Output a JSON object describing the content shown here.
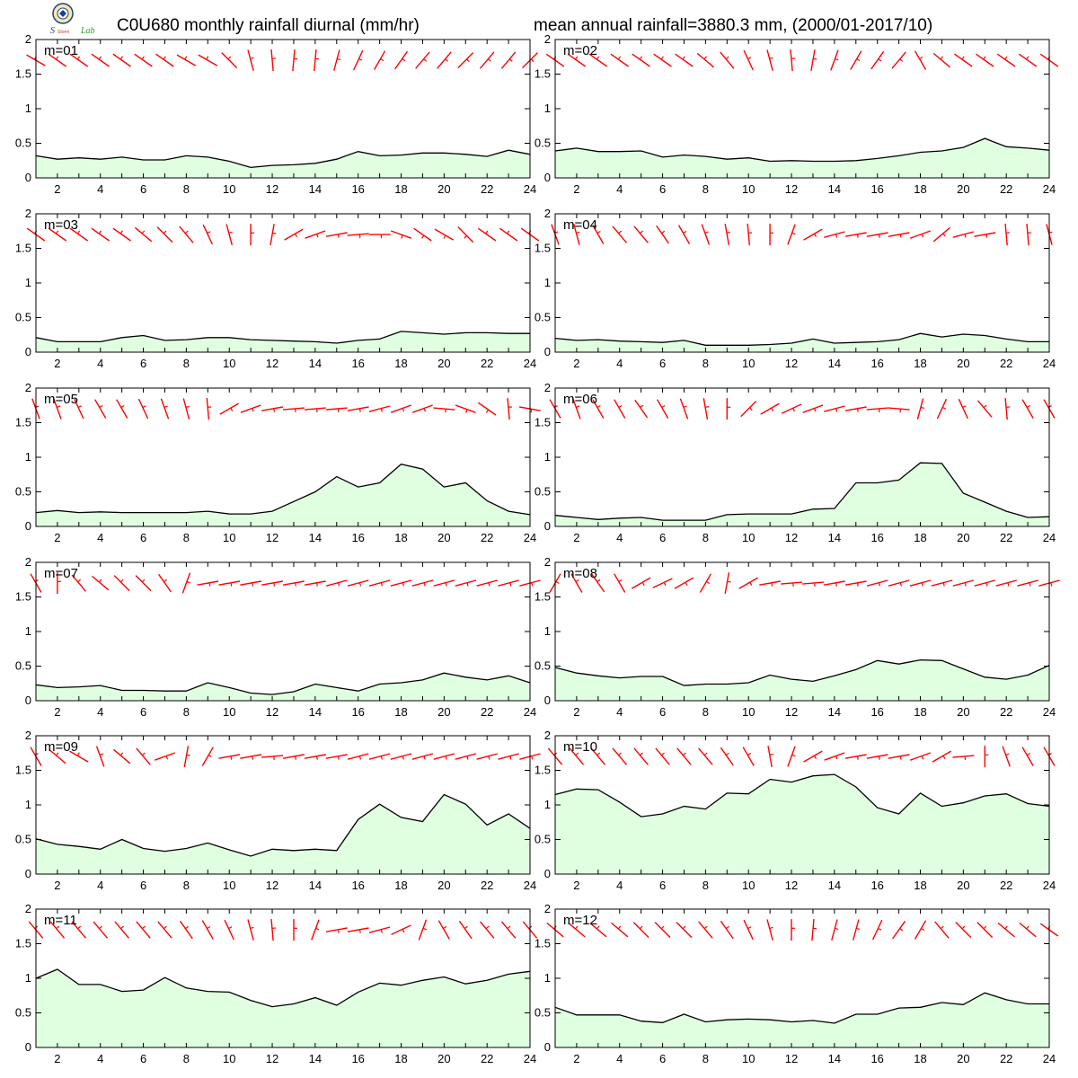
{
  "title_left": "C0U680 monthly rainfall diurnal (mm/hr)",
  "title_right": "mean annual rainfall=3880.3 mm, (2000/01-2017/10)",
  "logo": {
    "icon": "institution-seal-logo",
    "text": "Lab"
  },
  "colors": {
    "fill": "#e0ffe0",
    "line": "#000000",
    "wind": "#ff0000"
  },
  "chart_data": [
    {
      "type": "area",
      "label": "m=01",
      "x": [
        1,
        2,
        3,
        4,
        5,
        6,
        7,
        8,
        9,
        10,
        11,
        12,
        13,
        14,
        15,
        16,
        17,
        18,
        19,
        20,
        21,
        22,
        23,
        24
      ],
      "values": [
        0.32,
        0.27,
        0.29,
        0.27,
        0.3,
        0.26,
        0.26,
        0.32,
        0.3,
        0.24,
        0.15,
        0.18,
        0.19,
        0.21,
        0.27,
        0.38,
        0.32,
        0.33,
        0.36,
        0.36,
        0.34,
        0.31,
        0.4,
        0.34
      ],
      "xlim": [
        1,
        24
      ],
      "ylim": [
        0,
        2
      ],
      "xticks": [
        2,
        4,
        6,
        8,
        10,
        12,
        14,
        16,
        18,
        20,
        22,
        24
      ],
      "yticks": [
        0,
        0.5,
        1,
        1.5,
        2
      ],
      "wind_dir": [
        300,
        305,
        305,
        305,
        305,
        305,
        305,
        300,
        300,
        315,
        345,
        355,
        5,
        5,
        15,
        25,
        30,
        35,
        40,
        40,
        45,
        40,
        40,
        45
      ]
    },
    {
      "type": "area",
      "label": "m=02",
      "x": [
        1,
        2,
        3,
        4,
        5,
        6,
        7,
        8,
        9,
        10,
        11,
        12,
        13,
        14,
        15,
        16,
        17,
        18,
        19,
        20,
        21,
        22,
        23,
        24
      ],
      "values": [
        0.39,
        0.43,
        0.38,
        0.38,
        0.39,
        0.3,
        0.33,
        0.31,
        0.27,
        0.29,
        0.24,
        0.25,
        0.24,
        0.24,
        0.25,
        0.28,
        0.32,
        0.37,
        0.39,
        0.44,
        0.57,
        0.45,
        0.43,
        0.4
      ],
      "xlim": [
        1,
        24
      ],
      "ylim": [
        0,
        2
      ],
      "xticks": [
        2,
        4,
        6,
        8,
        10,
        12,
        14,
        16,
        18,
        20,
        22,
        24
      ],
      "yticks": [
        0,
        0.5,
        1,
        1.5,
        2
      ],
      "wind_dir": [
        305,
        305,
        305,
        305,
        305,
        305,
        305,
        310,
        320,
        335,
        345,
        355,
        10,
        20,
        30,
        35,
        40,
        330,
        310,
        305,
        305,
        305,
        305,
        305
      ]
    },
    {
      "type": "area",
      "label": "m=03",
      "x": [
        1,
        2,
        3,
        4,
        5,
        6,
        7,
        8,
        9,
        10,
        11,
        12,
        13,
        14,
        15,
        16,
        17,
        18,
        19,
        20,
        21,
        22,
        23,
        24
      ],
      "values": [
        0.21,
        0.15,
        0.15,
        0.15,
        0.21,
        0.24,
        0.17,
        0.18,
        0.21,
        0.21,
        0.18,
        0.17,
        0.16,
        0.15,
        0.13,
        0.17,
        0.19,
        0.3,
        0.28,
        0.26,
        0.28,
        0.28,
        0.27,
        0.27
      ],
      "xlim": [
        1,
        24
      ],
      "ylim": [
        0,
        2
      ],
      "xticks": [
        2,
        4,
        6,
        8,
        10,
        12,
        14,
        16,
        18,
        20,
        22,
        24
      ],
      "yticks": [
        0,
        0.5,
        1,
        1.5,
        2
      ],
      "wind_dir": [
        305,
        305,
        305,
        305,
        305,
        310,
        315,
        320,
        335,
        345,
        0,
        10,
        60,
        70,
        80,
        85,
        90,
        110,
        125,
        120,
        135,
        305,
        305,
        305
      ]
    },
    {
      "type": "area",
      "label": "m=04",
      "x": [
        1,
        2,
        3,
        4,
        5,
        6,
        7,
        8,
        9,
        10,
        11,
        12,
        13,
        14,
        15,
        16,
        17,
        18,
        19,
        20,
        21,
        22,
        23,
        24
      ],
      "values": [
        0.2,
        0.17,
        0.18,
        0.16,
        0.15,
        0.14,
        0.17,
        0.1,
        0.1,
        0.1,
        0.11,
        0.13,
        0.19,
        0.13,
        0.14,
        0.15,
        0.18,
        0.27,
        0.22,
        0.26,
        0.24,
        0.19,
        0.15,
        0.15
      ],
      "xlim": [
        1,
        24
      ],
      "ylim": [
        0,
        2
      ],
      "xticks": [
        2,
        4,
        6,
        8,
        10,
        12,
        14,
        16,
        18,
        20,
        22,
        24
      ],
      "yticks": [
        0,
        0.5,
        1,
        1.5,
        2
      ],
      "wind_dir": [
        340,
        345,
        330,
        320,
        320,
        325,
        330,
        340,
        350,
        355,
        0,
        20,
        60,
        75,
        80,
        80,
        80,
        70,
        50,
        75,
        80,
        355,
        355,
        345
      ]
    },
    {
      "type": "area",
      "label": "m=05",
      "x": [
        1,
        2,
        3,
        4,
        5,
        6,
        7,
        8,
        9,
        10,
        11,
        12,
        13,
        14,
        15,
        16,
        17,
        18,
        19,
        20,
        21,
        22,
        23,
        24
      ],
      "values": [
        0.2,
        0.23,
        0.2,
        0.21,
        0.2,
        0.2,
        0.2,
        0.2,
        0.22,
        0.18,
        0.18,
        0.22,
        0.36,
        0.5,
        0.72,
        0.57,
        0.63,
        0.9,
        0.83,
        0.57,
        0.63,
        0.37,
        0.22,
        0.17
      ],
      "xlim": [
        1,
        24
      ],
      "ylim": [
        0,
        2
      ],
      "xticks": [
        2,
        4,
        6,
        8,
        10,
        12,
        14,
        16,
        18,
        20,
        22,
        24
      ],
      "yticks": [
        0,
        0.5,
        1,
        1.5,
        2
      ],
      "wind_dir": [
        340,
        340,
        335,
        330,
        330,
        335,
        340,
        345,
        355,
        60,
        70,
        80,
        85,
        85,
        85,
        80,
        75,
        70,
        70,
        95,
        110,
        125,
        355,
        100
      ]
    },
    {
      "type": "area",
      "label": "m=06",
      "x": [
        1,
        2,
        3,
        4,
        5,
        6,
        7,
        8,
        9,
        10,
        11,
        12,
        13,
        14,
        15,
        16,
        17,
        18,
        19,
        20,
        21,
        22,
        23,
        24
      ],
      "values": [
        0.16,
        0.13,
        0.1,
        0.12,
        0.13,
        0.09,
        0.09,
        0.09,
        0.17,
        0.18,
        0.18,
        0.18,
        0.25,
        0.26,
        0.63,
        0.63,
        0.67,
        0.92,
        0.91,
        0.48,
        0.35,
        0.22,
        0.13,
        0.14
      ],
      "xlim": [
        1,
        24
      ],
      "ylim": [
        0,
        2
      ],
      "xticks": [
        2,
        4,
        6,
        8,
        10,
        12,
        14,
        16,
        18,
        20,
        22,
        24
      ],
      "yticks": [
        0,
        0.5,
        1,
        1.5,
        2
      ],
      "wind_dir": [
        330,
        340,
        330,
        330,
        325,
        330,
        340,
        350,
        0,
        45,
        60,
        65,
        70,
        75,
        80,
        85,
        95,
        15,
        25,
        335,
        320,
        355,
        330,
        330
      ]
    },
    {
      "type": "area",
      "label": "m=07",
      "x": [
        1,
        2,
        3,
        4,
        5,
        6,
        7,
        8,
        9,
        10,
        11,
        12,
        13,
        14,
        15,
        16,
        17,
        18,
        19,
        20,
        21,
        22,
        23,
        24
      ],
      "values": [
        0.23,
        0.19,
        0.2,
        0.22,
        0.15,
        0.15,
        0.14,
        0.14,
        0.26,
        0.19,
        0.11,
        0.09,
        0.13,
        0.24,
        0.19,
        0.14,
        0.24,
        0.26,
        0.3,
        0.4,
        0.34,
        0.3,
        0.36,
        0.26
      ],
      "xlim": [
        1,
        24
      ],
      "ylim": [
        0,
        2
      ],
      "xticks": [
        2,
        4,
        6,
        8,
        10,
        12,
        14,
        16,
        18,
        20,
        22,
        24
      ],
      "yticks": [
        0,
        0.5,
        1,
        1.5,
        2
      ],
      "wind_dir": [
        330,
        0,
        320,
        310,
        315,
        315,
        325,
        20,
        80,
        80,
        80,
        80,
        80,
        80,
        75,
        75,
        75,
        75,
        75,
        75,
        75,
        75,
        75,
        75
      ]
    },
    {
      "type": "area",
      "label": "m=08",
      "x": [
        1,
        2,
        3,
        4,
        5,
        6,
        7,
        8,
        9,
        10,
        11,
        12,
        13,
        14,
        15,
        16,
        17,
        18,
        19,
        20,
        21,
        22,
        23,
        24
      ],
      "values": [
        0.48,
        0.4,
        0.36,
        0.33,
        0.35,
        0.35,
        0.22,
        0.24,
        0.24,
        0.26,
        0.37,
        0.31,
        0.28,
        0.36,
        0.45,
        0.58,
        0.53,
        0.59,
        0.58,
        0.46,
        0.34,
        0.31,
        0.37,
        0.51
      ],
      "xlim": [
        1,
        24
      ],
      "ylim": [
        0,
        2
      ],
      "xticks": [
        2,
        4,
        6,
        8,
        10,
        12,
        14,
        16,
        18,
        20,
        22,
        24
      ],
      "yticks": [
        0,
        0.5,
        1,
        1.5,
        2
      ],
      "wind_dir": [
        30,
        330,
        325,
        330,
        60,
        65,
        60,
        30,
        10,
        60,
        80,
        85,
        85,
        80,
        80,
        75,
        75,
        75,
        75,
        75,
        75,
        75,
        75,
        75
      ]
    },
    {
      "type": "area",
      "label": "m=09",
      "x": [
        1,
        2,
        3,
        4,
        5,
        6,
        7,
        8,
        9,
        10,
        11,
        12,
        13,
        14,
        15,
        16,
        17,
        18,
        19,
        20,
        21,
        22,
        23,
        24
      ],
      "values": [
        0.51,
        0.43,
        0.4,
        0.36,
        0.5,
        0.37,
        0.33,
        0.37,
        0.45,
        0.35,
        0.26,
        0.36,
        0.34,
        0.36,
        0.34,
        0.79,
        1.01,
        0.82,
        0.76,
        1.15,
        1.01,
        0.71,
        0.87,
        0.66
      ],
      "xlim": [
        1,
        24
      ],
      "ylim": [
        0,
        2
      ],
      "xticks": [
        2,
        4,
        6,
        8,
        10,
        12,
        14,
        16,
        18,
        20,
        22,
        24
      ],
      "yticks": [
        0,
        0.5,
        1,
        1.5,
        2
      ],
      "wind_dir": [
        330,
        310,
        300,
        340,
        310,
        320,
        70,
        10,
        30,
        80,
        80,
        85,
        80,
        80,
        80,
        75,
        75,
        75,
        75,
        75,
        75,
        75,
        75,
        75
      ]
    },
    {
      "type": "area",
      "label": "m=10",
      "x": [
        1,
        2,
        3,
        4,
        5,
        6,
        7,
        8,
        9,
        10,
        11,
        12,
        13,
        14,
        15,
        16,
        17,
        18,
        19,
        20,
        21,
        22,
        23,
        24
      ],
      "values": [
        1.15,
        1.23,
        1.22,
        1.04,
        0.83,
        0.87,
        0.98,
        0.94,
        1.17,
        1.16,
        1.37,
        1.33,
        1.42,
        1.44,
        1.26,
        0.96,
        0.87,
        1.17,
        0.98,
        1.03,
        1.13,
        1.16,
        1.02,
        0.98
      ],
      "xlim": [
        1,
        24
      ],
      "ylim": [
        0,
        2
      ],
      "xticks": [
        2,
        4,
        6,
        8,
        10,
        12,
        14,
        16,
        18,
        20,
        22,
        24
      ],
      "yticks": [
        0,
        0.5,
        1,
        1.5,
        2
      ],
      "wind_dir": [
        320,
        320,
        320,
        320,
        320,
        320,
        320,
        320,
        325,
        330,
        350,
        20,
        60,
        70,
        80,
        80,
        80,
        70,
        60,
        85,
        0,
        340,
        330,
        330
      ]
    },
    {
      "type": "area",
      "label": "m=11",
      "x": [
        1,
        2,
        3,
        4,
        5,
        6,
        7,
        8,
        9,
        10,
        11,
        12,
        13,
        14,
        15,
        16,
        17,
        18,
        19,
        20,
        21,
        22,
        23,
        24
      ],
      "values": [
        1.0,
        1.13,
        0.91,
        0.91,
        0.81,
        0.83,
        1.01,
        0.86,
        0.81,
        0.8,
        0.68,
        0.59,
        0.63,
        0.72,
        0.61,
        0.8,
        0.93,
        0.9,
        0.97,
        1.02,
        0.92,
        0.97,
        1.06,
        1.1
      ],
      "xlim": [
        1,
        24
      ],
      "ylim": [
        0,
        2
      ],
      "xticks": [
        2,
        4,
        6,
        8,
        10,
        12,
        14,
        16,
        18,
        20,
        22,
        24
      ],
      "yticks": [
        0,
        0.5,
        1,
        1.5,
        2
      ],
      "wind_dir": [
        320,
        320,
        320,
        320,
        320,
        320,
        320,
        325,
        330,
        335,
        345,
        355,
        0,
        20,
        80,
        80,
        75,
        65,
        20,
        330,
        325,
        320,
        320,
        320
      ]
    },
    {
      "type": "area",
      "label": "m=12",
      "x": [
        1,
        2,
        3,
        4,
        5,
        6,
        7,
        8,
        9,
        10,
        11,
        12,
        13,
        14,
        15,
        16,
        17,
        18,
        19,
        20,
        21,
        22,
        23,
        24
      ],
      "values": [
        0.58,
        0.47,
        0.47,
        0.47,
        0.38,
        0.36,
        0.48,
        0.37,
        0.4,
        0.41,
        0.4,
        0.37,
        0.39,
        0.35,
        0.48,
        0.48,
        0.57,
        0.58,
        0.65,
        0.62,
        0.79,
        0.69,
        0.63,
        0.63
      ],
      "xlim": [
        1,
        24
      ],
      "ylim": [
        0,
        2
      ],
      "xticks": [
        2,
        4,
        6,
        8,
        10,
        12,
        14,
        16,
        18,
        20,
        22,
        24
      ],
      "yticks": [
        0,
        0.5,
        1,
        1.5,
        2
      ],
      "wind_dir": [
        310,
        310,
        310,
        310,
        315,
        315,
        315,
        320,
        325,
        335,
        345,
        0,
        5,
        15,
        15,
        25,
        35,
        30,
        320,
        315,
        315,
        310,
        310,
        305
      ]
    }
  ]
}
